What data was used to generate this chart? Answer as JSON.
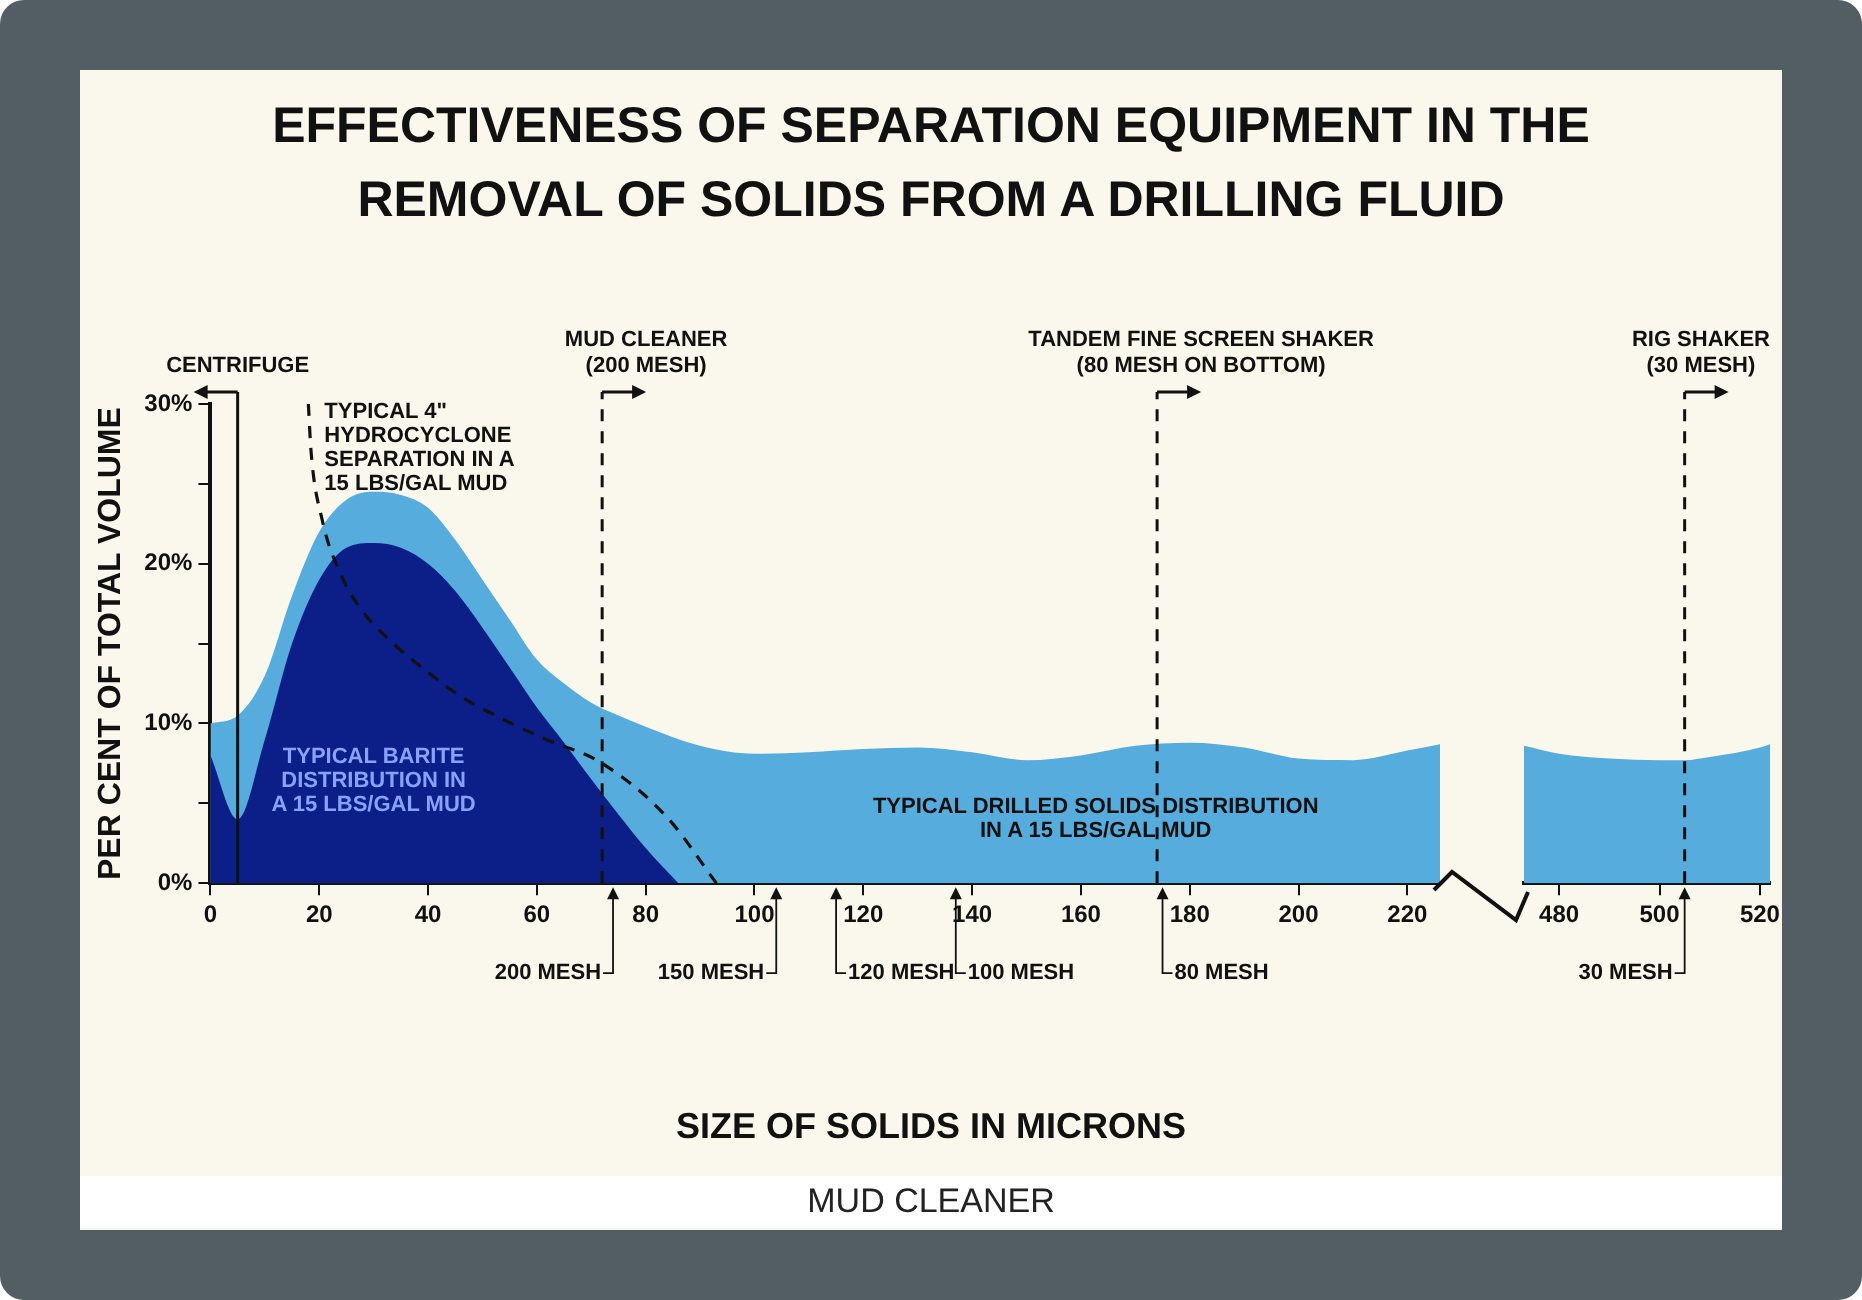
{
  "chart_data": [
    {
      "type": "area",
      "title": "EFFECTIVENESS OF SEPARATION EQUIPMENT IN THE REMOVAL OF SOLIDS FROM A DRILLING FLUID",
      "xlabel": "SIZE OF SOLIDS IN MICRONS",
      "ylabel": "PER CENT OF TOTAL VOLUME",
      "xlim": [
        0,
        226
      ],
      "xticks": [
        0,
        20,
        40,
        60,
        80,
        100,
        120,
        140,
        160,
        180,
        200,
        220
      ],
      "ylim": [
        0,
        30
      ],
      "yticks": [
        {
          "value": 0,
          "label": "0%"
        },
        {
          "value": 5,
          "label": null
        },
        {
          "value": 10,
          "label": "10%"
        },
        {
          "value": 15,
          "label": null
        },
        {
          "value": 20,
          "label": "20%"
        },
        {
          "value": 25,
          "label": null
        },
        {
          "value": 30,
          "label": "30%"
        }
      ],
      "grid": false,
      "legend": false,
      "marker": "none",
      "series": [
        {
          "name": "TYPICAL DRILLED SOLIDS DISTRIBUTION\nIN A 15 LBS/GAL MUD",
          "color": "#56acdc",
          "x": [
            0,
            5,
            10,
            15,
            20,
            25,
            30,
            35,
            40,
            45,
            50,
            55,
            60,
            65,
            70,
            75,
            80,
            90,
            100,
            110,
            120,
            130,
            140,
            150,
            160,
            170,
            180,
            190,
            200,
            210,
            220,
            226
          ],
          "values": [
            10,
            10.5,
            13,
            18,
            22,
            24,
            24.5,
            24.3,
            23.5,
            21.5,
            19,
            16.5,
            14,
            12.5,
            11.3,
            10.5,
            9.8,
            8.6,
            8.1,
            8.2,
            8.4,
            8.5,
            8.2,
            7.7,
            8.0,
            8.6,
            8.8,
            8.5,
            7.8,
            7.7,
            8.3,
            8.7
          ]
        },
        {
          "name": "TYPICAL BARITE\nDISTRIBUTION IN\nA 15 LBS/GAL MUD",
          "color": "#0c1f88",
          "x": [
            0,
            5,
            10,
            15,
            20,
            25,
            30,
            35,
            40,
            45,
            50,
            55,
            60,
            65,
            70,
            75,
            80,
            86
          ],
          "values": [
            8,
            4,
            9,
            15,
            19,
            21,
            21.3,
            21,
            20,
            18.3,
            16,
            13.5,
            11,
            8.8,
            6.5,
            4.3,
            2.2,
            0
          ]
        },
        {
          "name": "TYPICAL 4\"\nHYDROCYCLONE\nSEPARATION IN A\n15 LBS/GAL MUD",
          "type": "line",
          "line_style": "dashed",
          "color": "#111111",
          "x": [
            18,
            18.5,
            20.5,
            24,
            28,
            33,
            40,
            46,
            53,
            61,
            72,
            84,
            93
          ],
          "values": [
            30,
            27,
            22.8,
            19.3,
            17,
            15.2,
            13.2,
            11.7,
            10.4,
            9.1,
            7.5,
            4.1,
            0
          ]
        }
      ],
      "ref_lines": [
        {
          "axis": "x",
          "value": 5,
          "label": "CENTRIFUGE",
          "line_style": "solid"
        },
        {
          "axis": "x",
          "value": 72,
          "label": "MUD CLEANER\n(200 MESH)",
          "line_style": "dashed"
        },
        {
          "axis": "x",
          "value": 174,
          "label": "TANDEM FINE SCREEN SHAKER\n(80 MESH ON BOTTOM)",
          "line_style": "dashed"
        }
      ],
      "annotations": [
        {
          "text": "200 MESH",
          "x": 74,
          "y": 0
        },
        {
          "text": "150 MESH",
          "x": 104,
          "y": 0
        },
        {
          "text": "120 MESH",
          "x": 115,
          "y": 0
        },
        {
          "text": "100 MESH",
          "x": 137,
          "y": 0
        },
        {
          "text": "80 MESH",
          "x": 175,
          "y": 0
        },
        "MUD CLEANER"
      ]
    },
    {
      "type": "area",
      "xlim": [
        473,
        522
      ],
      "xticks": [
        480,
        500,
        520
      ],
      "ylim": [
        0,
        30
      ],
      "tick_labels": "x",
      "grid": false,
      "legend": false,
      "marker": "none",
      "series": [
        {
          "color": "#56acdc",
          "x": [
            473,
            480,
            490,
            500,
            505,
            510,
            520,
            522
          ],
          "values": [
            8.6,
            8.1,
            7.8,
            7.7,
            7.7,
            7.9,
            8.5,
            8.7
          ]
        }
      ],
      "ref_lines": [
        {
          "axis": "x",
          "value": 505,
          "label": "RIG SHAKER\n(30 MESH)",
          "line_style": "dashed"
        }
      ],
      "annotations": [
        {
          "text": "30 MESH",
          "x": 505,
          "y": 0
        }
      ]
    }
  ]
}
